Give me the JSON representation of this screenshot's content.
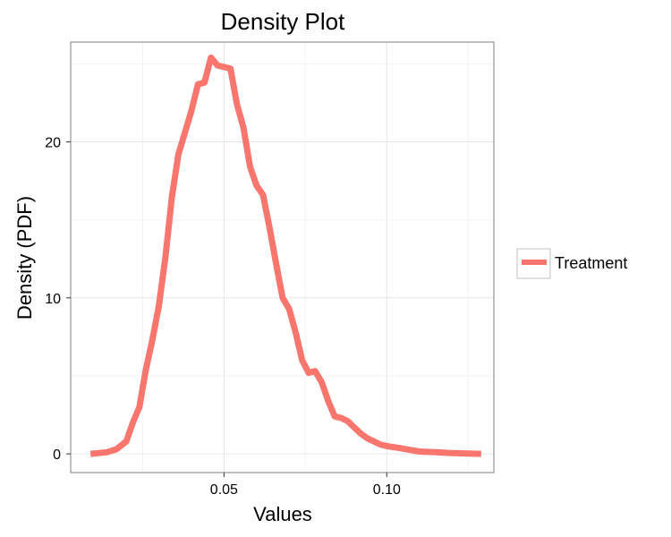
{
  "chart_data": {
    "type": "line",
    "title": "Density Plot",
    "xlabel": "Values",
    "ylabel": "Density (PDF)",
    "xlim": [
      0.0029,
      0.1329
    ],
    "ylim": [
      -1.2,
      26.4
    ],
    "x_ticks": [
      0.05,
      0.1
    ],
    "x_tick_labels": [
      "0.05",
      "0.10"
    ],
    "y_ticks": [
      0,
      10,
      20
    ],
    "y_tick_labels": [
      "0",
      "10",
      "20"
    ],
    "grid": true,
    "legend_position": "right",
    "series": [
      {
        "name": "Treatment",
        "color": "#f8766d",
        "x": [
          0.009,
          0.014,
          0.017,
          0.02,
          0.022,
          0.024,
          0.026,
          0.028,
          0.03,
          0.032,
          0.034,
          0.036,
          0.038,
          0.04,
          0.042,
          0.044,
          0.046,
          0.048,
          0.05,
          0.052,
          0.054,
          0.056,
          0.058,
          0.06,
          0.062,
          0.064,
          0.066,
          0.068,
          0.07,
          0.072,
          0.074,
          0.076,
          0.078,
          0.08,
          0.082,
          0.084,
          0.086,
          0.088,
          0.09,
          0.092,
          0.094,
          0.096,
          0.098,
          0.1,
          0.103,
          0.106,
          0.11,
          0.115,
          0.12,
          0.125,
          0.129
        ],
        "values": [
          0.0,
          0.1,
          0.3,
          0.8,
          2.0,
          3.0,
          5.4,
          7.3,
          9.5,
          12.6,
          16.5,
          19.2,
          20.6,
          22.0,
          23.7,
          23.8,
          25.4,
          24.9,
          24.8,
          24.7,
          22.4,
          20.9,
          18.4,
          17.2,
          16.6,
          14.5,
          12.2,
          10.0,
          9.3,
          7.8,
          6.0,
          5.2,
          5.3,
          4.6,
          3.4,
          2.4,
          2.3,
          2.1,
          1.7,
          1.3,
          1.0,
          0.8,
          0.6,
          0.5,
          0.4,
          0.3,
          0.15,
          0.1,
          0.05,
          0.02,
          0.0
        ]
      }
    ]
  }
}
